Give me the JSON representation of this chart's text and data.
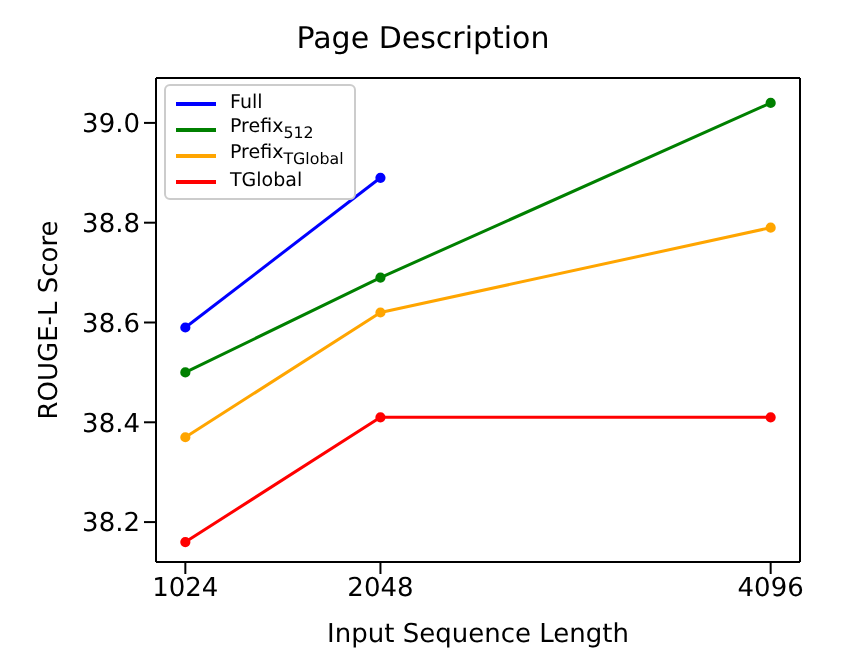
{
  "chart_data": {
    "type": "line",
    "title": "Page Description",
    "xlabel": "Input Sequence Length",
    "ylabel": "ROUGE-L Score",
    "x": [
      1024,
      2048,
      4096
    ],
    "series": [
      {
        "name": "Full",
        "color": "#0000ff",
        "values": [
          38.59,
          38.89,
          null
        ]
      },
      {
        "name": "Prefix$_{512}$",
        "color": "#008000",
        "values": [
          38.5,
          38.69,
          39.04
        ]
      },
      {
        "name": "Prefix$_{TGlobal}$",
        "color": "#ffa500",
        "values": [
          38.37,
          38.62,
          38.79
        ]
      },
      {
        "name": "TGlobal",
        "color": "#ff0000",
        "values": [
          38.16,
          38.41,
          38.41
        ]
      }
    ],
    "xlim": [
      870,
      4250
    ],
    "xticks": [
      1024,
      2048,
      4096
    ],
    "ylim": [
      38.12,
      39.09
    ],
    "yticks": [
      38.2,
      38.4,
      38.6,
      38.8,
      {
        "value": 39,
        "label": "39.0"
      }
    ],
    "grid": false,
    "legend": "top left",
    "marker": "circle",
    "line_style": "solid"
  }
}
